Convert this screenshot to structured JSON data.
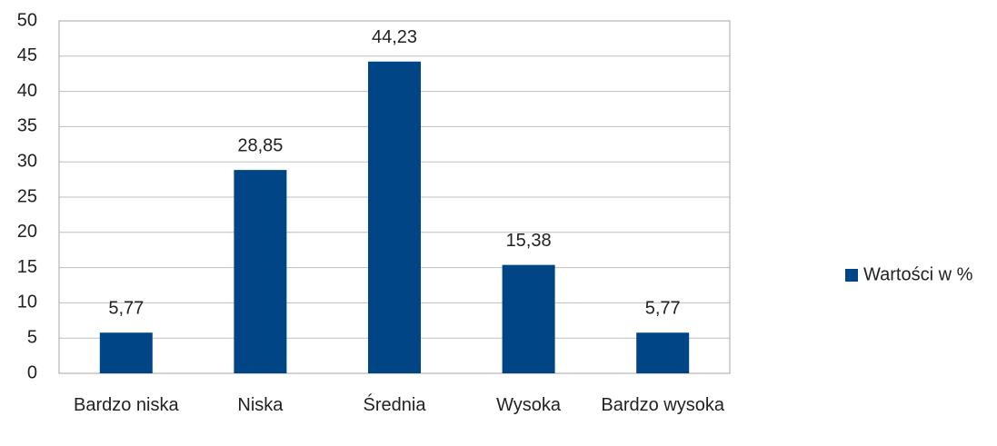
{
  "chart_data": {
    "type": "bar",
    "categories": [
      "Bardzo niska",
      "Niska",
      "Średnia",
      "Wysoka",
      "Bardzo wysoka"
    ],
    "series": [
      {
        "name": "Wartości w %",
        "color": "#004586",
        "values": [
          5.77,
          28.85,
          44.23,
          15.38,
          5.77
        ],
        "value_labels": [
          "5,77",
          "28,85",
          "44,23",
          "15,38",
          "5,77"
        ]
      }
    ],
    "ylim": [
      0,
      50
    ],
    "yticks": [
      0,
      5,
      10,
      15,
      20,
      25,
      30,
      35,
      40,
      45,
      50
    ],
    "grid": true,
    "legend": "right"
  }
}
